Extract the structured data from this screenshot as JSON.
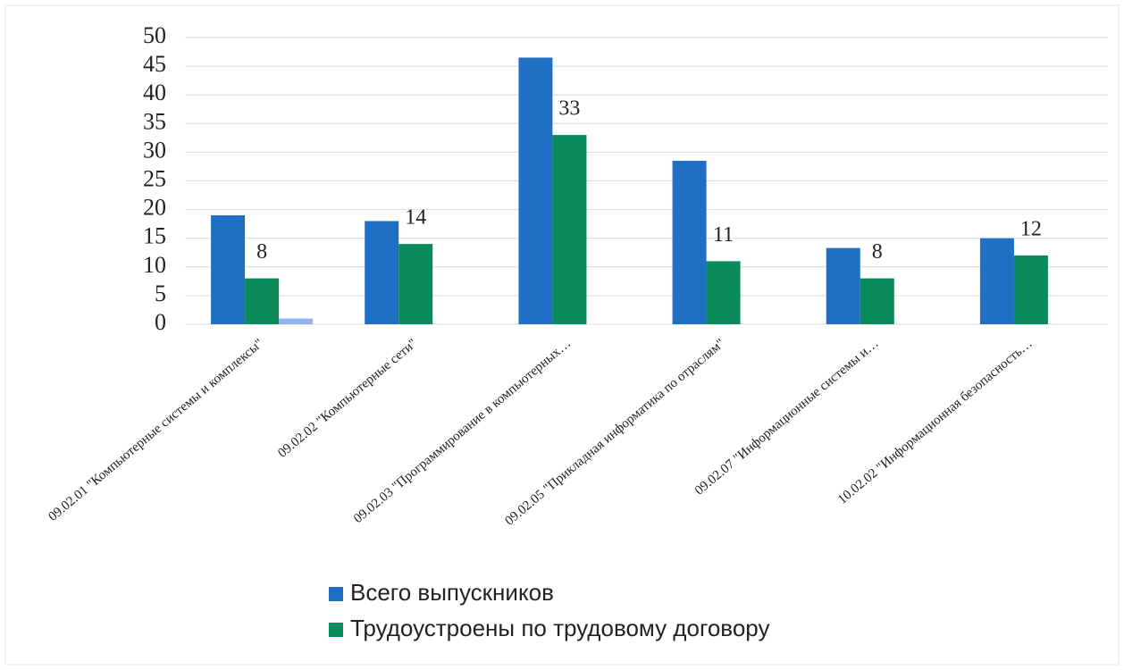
{
  "chart_data": {
    "type": "bar",
    "categories": [
      "09.02.01 \"Компьютерные системы и комплексы\"",
      "09.02.02 \"Компьютерные сети\"",
      "09.02.03 \"Программирование в компьютерных…",
      "09.02.05 \"Прикладная информатика по отраслям\"",
      "09.02.07 \"Информационные системы и…",
      "10.02.02 \"Информационная безопасность…"
    ],
    "series": [
      {
        "name": "Всего выпускников",
        "color": "#1f6fc5",
        "values": [
          19,
          18,
          46.5,
          28.5,
          13.3,
          15
        ]
      },
      {
        "name": "Трудоустроены по трудовому договору",
        "color": "#0b8a5a",
        "values": [
          8,
          14,
          33,
          11,
          8,
          12
        ],
        "data_labels": true
      },
      {
        "color": "#8fb4ee",
        "values": [
          1,
          null,
          null,
          null,
          null,
          null
        ]
      }
    ],
    "ylim": [
      0,
      50
    ],
    "yticks": [
      0,
      5,
      10,
      15,
      20,
      25,
      30,
      35,
      40,
      45,
      50
    ],
    "grid": true,
    "legend": "bottom-left"
  }
}
